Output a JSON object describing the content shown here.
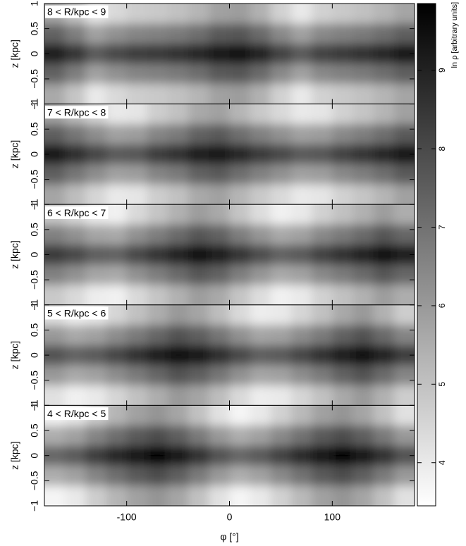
{
  "chart_data": [
    {
      "type": "heatmap",
      "label": "8 < R/kpc < 9",
      "ylabel": "z [kpc]",
      "xlim": [
        -180,
        180
      ],
      "ylim": [
        -1,
        1
      ],
      "xticks": [
        -100,
        0,
        100
      ],
      "yticks": [
        {
          "value": -1,
          "label": "−1"
        },
        {
          "value": -0.5,
          "label": "−0.5"
        },
        0,
        0.5,
        1
      ],
      "x": [
        -170,
        -150,
        -130,
        -110,
        -90,
        -70,
        -50,
        -30,
        -10,
        10,
        30,
        50,
        70,
        90,
        110,
        130,
        150,
        170
      ],
      "y": [
        0.8,
        0.4,
        0,
        -0.4,
        -0.8
      ],
      "values": [
        [
          5.6,
          4.9,
          4.0,
          4.4,
          4.7,
          4.8,
          5.0,
          5.3,
          5.8,
          5.9,
          5.4,
          4.6,
          4.0,
          4.6,
          4.8,
          5.0,
          5.3,
          5.7
        ],
        [
          7.4,
          6.7,
          5.8,
          6.2,
          6.5,
          6.6,
          6.8,
          7.1,
          7.6,
          7.7,
          7.2,
          6.4,
          5.8,
          6.4,
          6.6,
          6.8,
          7.1,
          7.5
        ],
        [
          9.2,
          8.5,
          7.6,
          8.0,
          8.3,
          8.4,
          8.6,
          8.9,
          9.4,
          9.5,
          9.0,
          8.2,
          7.6,
          8.2,
          8.4,
          8.6,
          8.9,
          9.3
        ],
        [
          7.4,
          6.7,
          5.8,
          6.2,
          6.5,
          6.6,
          6.8,
          7.1,
          7.6,
          7.7,
          7.2,
          6.4,
          5.8,
          6.4,
          6.6,
          6.8,
          7.1,
          7.5
        ],
        [
          5.6,
          4.9,
          4.0,
          4.4,
          4.7,
          4.8,
          5.0,
          5.3,
          5.8,
          5.9,
          5.4,
          4.6,
          4.0,
          4.6,
          4.8,
          5.0,
          5.3,
          5.7
        ]
      ]
    },
    {
      "type": "heatmap",
      "label": "7 < R/kpc < 8",
      "ylabel": "z [kpc]",
      "xlim": [
        -180,
        180
      ],
      "ylim": [
        -1,
        1
      ],
      "xticks": [
        -100,
        0,
        100
      ],
      "yticks": [
        {
          "value": -1,
          "label": "−1"
        },
        {
          "value": -0.5,
          "label": "−0.5"
        },
        0,
        0.5,
        1
      ],
      "x": [
        -170,
        -150,
        -130,
        -110,
        -90,
        -70,
        -50,
        -30,
        -10,
        10,
        30,
        50,
        70,
        90,
        110,
        130,
        150,
        170
      ],
      "y": [
        0.8,
        0.4,
        0,
        -0.4,
        -0.8
      ],
      "values": [
        [
          5.7,
          5.1,
          4.5,
          4.0,
          4.1,
          4.7,
          5.0,
          5.6,
          5.8,
          5.3,
          4.8,
          4.4,
          4.0,
          4.1,
          4.6,
          4.9,
          5.3,
          5.8
        ],
        [
          7.5,
          6.9,
          6.3,
          5.8,
          5.9,
          6.5,
          6.8,
          7.4,
          7.6,
          7.1,
          6.6,
          6.2,
          5.8,
          5.9,
          6.4,
          6.7,
          7.1,
          7.6
        ],
        [
          9.3,
          8.7,
          8.1,
          7.6,
          7.7,
          8.3,
          8.6,
          9.2,
          9.4,
          8.9,
          8.4,
          8.0,
          7.6,
          7.7,
          8.2,
          8.5,
          8.9,
          9.4
        ],
        [
          7.5,
          6.9,
          6.3,
          5.8,
          5.9,
          6.5,
          6.8,
          7.4,
          7.6,
          7.1,
          6.6,
          6.2,
          5.8,
          5.9,
          6.4,
          6.7,
          7.1,
          7.6
        ],
        [
          5.7,
          5.1,
          4.5,
          4.0,
          4.1,
          4.7,
          5.0,
          5.6,
          5.8,
          5.3,
          4.8,
          4.4,
          4.0,
          4.1,
          4.6,
          4.9,
          5.3,
          5.8
        ]
      ]
    },
    {
      "type": "heatmap",
      "label": "6 < R/kpc < 7",
      "ylabel": "z [kpc]",
      "xlim": [
        -180,
        180
      ],
      "ylim": [
        -1,
        1
      ],
      "xticks": [
        -100,
        0,
        100
      ],
      "yticks": [
        {
          "value": -1,
          "label": "−1"
        },
        {
          "value": -0.5,
          "label": "−0.5"
        },
        0,
        0.5,
        1
      ],
      "x": [
        -170,
        -150,
        -130,
        -110,
        -90,
        -70,
        -50,
        -30,
        -10,
        10,
        30,
        50,
        70,
        90,
        110,
        130,
        150,
        170
      ],
      "y": [
        0.8,
        0.4,
        0,
        -0.4,
        -0.8
      ],
      "values": [
        [
          4.8,
          4.4,
          3.9,
          3.8,
          4.4,
          4.9,
          5.4,
          5.9,
          5.6,
          4.9,
          4.3,
          3.8,
          4.0,
          4.6,
          5.0,
          5.4,
          5.9,
          5.5
        ],
        [
          6.6,
          6.2,
          5.7,
          5.6,
          6.2,
          6.7,
          7.2,
          7.7,
          7.4,
          6.7,
          6.1,
          5.6,
          5.8,
          6.4,
          6.8,
          7.2,
          7.7,
          7.3
        ],
        [
          8.4,
          8.0,
          7.5,
          7.4,
          8.0,
          8.5,
          9.0,
          9.5,
          9.2,
          8.5,
          7.9,
          7.4,
          7.6,
          8.2,
          8.6,
          9.0,
          9.5,
          9.1
        ],
        [
          6.6,
          6.2,
          5.7,
          5.6,
          6.2,
          6.7,
          7.2,
          7.7,
          7.4,
          6.7,
          6.1,
          5.6,
          5.8,
          6.4,
          6.8,
          7.2,
          7.7,
          7.3
        ],
        [
          4.8,
          4.4,
          3.9,
          3.8,
          4.4,
          4.9,
          5.4,
          5.9,
          5.6,
          4.9,
          4.3,
          3.8,
          4.0,
          4.6,
          5.0,
          5.4,
          5.9,
          5.5
        ]
      ]
    },
    {
      "type": "heatmap",
      "label": "5 < R/kpc < 6",
      "ylabel": "z [kpc]",
      "xlim": [
        -180,
        180
      ],
      "ylim": [
        -1,
        1
      ],
      "xticks": [
        -100,
        0,
        100
      ],
      "yticks": [
        {
          "value": -1,
          "label": "−1"
        },
        {
          "value": -0.5,
          "label": "−0.5"
        },
        0,
        0.5,
        1
      ],
      "x": [
        -170,
        -150,
        -130,
        -110,
        -90,
        -70,
        -50,
        -30,
        -10,
        10,
        30,
        50,
        70,
        90,
        110,
        130,
        150,
        170
      ],
      "y": [
        0.8,
        0.4,
        0,
        -0.4,
        -0.8
      ],
      "values": [
        [
          4.2,
          3.8,
          4.0,
          4.5,
          5.0,
          5.5,
          6.0,
          5.7,
          5.1,
          4.4,
          3.9,
          4.0,
          4.5,
          5.0,
          5.6,
          6.0,
          5.4,
          4.7
        ],
        [
          6.0,
          5.6,
          5.8,
          6.3,
          6.8,
          7.3,
          7.8,
          7.5,
          6.9,
          6.2,
          5.7,
          5.8,
          6.3,
          6.8,
          7.4,
          7.8,
          7.2,
          6.5
        ],
        [
          7.8,
          7.4,
          7.6,
          8.1,
          8.6,
          9.1,
          9.6,
          9.3,
          8.7,
          8.0,
          7.5,
          7.6,
          8.1,
          8.6,
          9.2,
          9.6,
          9.0,
          8.3
        ],
        [
          6.0,
          5.6,
          5.8,
          6.3,
          6.8,
          7.3,
          7.8,
          7.5,
          6.9,
          6.2,
          5.7,
          5.8,
          6.3,
          6.8,
          7.4,
          7.8,
          7.2,
          6.5
        ],
        [
          4.2,
          3.8,
          4.0,
          4.5,
          5.0,
          5.5,
          6.0,
          5.7,
          5.1,
          4.4,
          3.9,
          4.0,
          4.5,
          5.0,
          5.6,
          6.0,
          5.4,
          4.7
        ]
      ]
    },
    {
      "type": "heatmap",
      "label": "4 < R/kpc < 5",
      "ylabel": "z [kpc]",
      "xlabel": "φ [°]",
      "xlim": [
        -180,
        180
      ],
      "ylim": [
        -1,
        1
      ],
      "xticks": [
        -100,
        0,
        100
      ],
      "yticks": [
        {
          "value": -1,
          "label": "−1"
        },
        {
          "value": -0.5,
          "label": "−0.5"
        },
        0,
        0.5,
        1
      ],
      "x": [
        -170,
        -150,
        -130,
        -110,
        -90,
        -70,
        -50,
        -30,
        -10,
        10,
        30,
        50,
        70,
        90,
        110,
        130,
        150,
        170
      ],
      "y": [
        0.8,
        0.4,
        0,
        -0.4,
        -0.8
      ],
      "values": [
        [
          3.7,
          4.0,
          4.7,
          5.3,
          5.8,
          6.1,
          5.7,
          5.0,
          4.2,
          3.7,
          4.0,
          4.6,
          5.2,
          5.8,
          6.1,
          5.7,
          5.0,
          4.2
        ],
        [
          5.5,
          5.8,
          6.5,
          7.1,
          7.6,
          7.9,
          7.5,
          6.8,
          6.0,
          5.5,
          5.8,
          6.4,
          7.0,
          7.6,
          7.9,
          7.5,
          6.8,
          6.0
        ],
        [
          7.3,
          7.6,
          8.3,
          8.9,
          9.4,
          9.7,
          9.3,
          8.6,
          7.8,
          7.3,
          7.6,
          8.2,
          8.8,
          9.4,
          9.7,
          9.3,
          8.6,
          7.8
        ],
        [
          5.5,
          5.8,
          6.5,
          7.1,
          7.6,
          7.9,
          7.5,
          6.8,
          6.0,
          5.5,
          5.8,
          6.4,
          7.0,
          7.6,
          7.9,
          7.5,
          6.8,
          6.0
        ],
        [
          3.7,
          4.0,
          4.7,
          5.3,
          5.8,
          6.1,
          5.7,
          5.0,
          4.2,
          3.7,
          4.0,
          4.6,
          5.2,
          5.8,
          6.1,
          5.7,
          5.0,
          4.2
        ]
      ]
    }
  ],
  "colorbar": {
    "label": "ln ρ [arbitrary units]",
    "lim": [
      3.45,
      9.85
    ],
    "ticks": [
      4,
      5,
      6,
      7,
      8,
      9
    ]
  }
}
